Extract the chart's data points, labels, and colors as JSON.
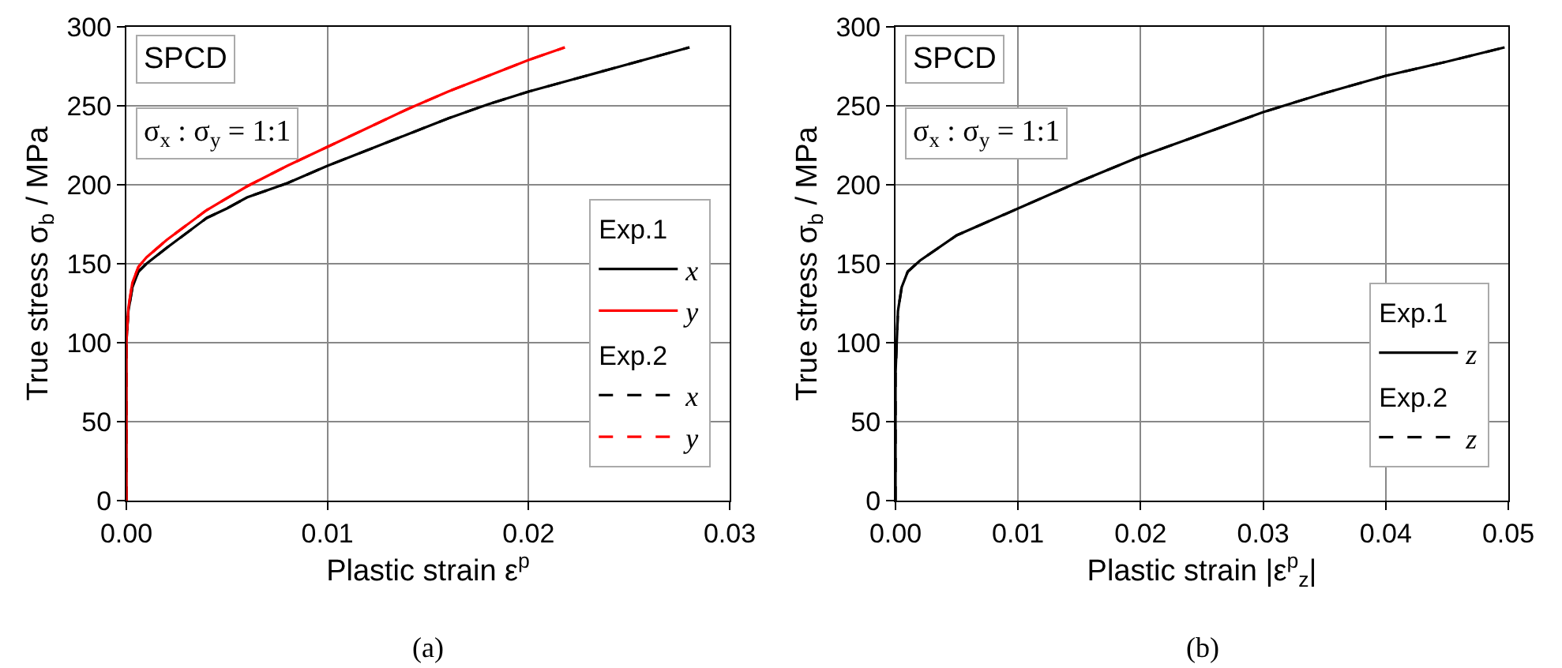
{
  "chart_data": [
    {
      "type": "line",
      "title": "(a)",
      "xlabel": "Plastic strain ε$^{p}$",
      "ylabel": "True stress σ$_{b}$ / MPa",
      "annotations": [
        "SPCD",
        "σ$_{x}$ : σ$_{y}$ = 1:1",
        "Exp.1",
        "Exp.2"
      ],
      "xlim": [
        0,
        0.03
      ],
      "xticks": [
        {
          "value": 0,
          "label": "0.00"
        },
        0.01,
        0.02,
        0.03
      ],
      "ylim": [
        0,
        300
      ],
      "yticks": [
        0,
        50,
        100,
        150,
        200,
        250,
        300
      ],
      "grid": true,
      "legend": "bottom right",
      "marker": "none",
      "series": [
        {
          "name": "x",
          "color": "#000000",
          "line_style": "solid",
          "x": [
            0,
            0,
            0.0001,
            0.0003,
            0.0006,
            0.001,
            0.002,
            0.004,
            0.005,
            0.006,
            0.008,
            0.01,
            0.012,
            0.014,
            0.016,
            0.018,
            0.02,
            0.022,
            0.024,
            0.026,
            0.028
          ],
          "values": [
            0,
            100,
            120,
            135,
            145,
            150,
            160,
            179,
            185,
            192,
            201,
            212,
            222,
            232,
            242,
            251,
            259,
            266,
            273,
            280,
            287
          ]
        },
        {
          "name": "y",
          "color": "#ff0000",
          "line_style": "solid",
          "x": [
            0,
            0,
            0.0001,
            0.0003,
            0.0006,
            0.001,
            0.002,
            0.004,
            0.006,
            0.008,
            0.01,
            0.012,
            0.014,
            0.016,
            0.018,
            0.02,
            0.0218
          ],
          "values": [
            0,
            100,
            122,
            138,
            148,
            154,
            165,
            184,
            199,
            212,
            224,
            236,
            248,
            259,
            269,
            279,
            287
          ]
        },
        {
          "name": "x",
          "color": "#000000",
          "line_style": "dashed",
          "x": [
            0,
            0,
            0.0001,
            0.0003,
            0.0006,
            0.001,
            0.002,
            0.004,
            0.005,
            0.006,
            0.008,
            0.01,
            0.012,
            0.014,
            0.016,
            0.018,
            0.02,
            0.022,
            0.024,
            0.026,
            0.028
          ],
          "values": [
            0,
            100,
            120,
            135,
            145,
            150,
            160,
            179,
            185,
            192,
            201,
            212,
            222,
            232,
            242,
            251,
            259,
            266,
            273,
            280,
            287
          ]
        },
        {
          "name": "y",
          "color": "#ff0000",
          "line_style": "dashed",
          "x": [
            0,
            0,
            0.0001,
            0.0003,
            0.0006,
            0.001,
            0.002,
            0.004,
            0.006,
            0.008,
            0.01,
            0.012,
            0.014,
            0.016,
            0.018,
            0.02,
            0.0218
          ],
          "values": [
            0,
            100,
            122,
            138,
            148,
            154,
            165,
            184,
            199,
            212,
            224,
            236,
            248,
            259,
            269,
            279,
            287
          ]
        }
      ]
    },
    {
      "type": "line",
      "title": "(b)",
      "xlabel": "Plastic strain |ε$^{p}$$_{z}$|",
      "ylabel": "True stress σ$_{b}$ / MPa",
      "annotations": [
        "SPCD",
        "σ$_{x}$ : σ$_{y}$ = 1:1",
        "Exp.1",
        "Exp.2"
      ],
      "xlim": [
        0,
        0.05
      ],
      "xticks": [
        {
          "value": 0,
          "label": "0.00"
        },
        0.01,
        0.02,
        0.03,
        0.04,
        0.05
      ],
      "ylim": [
        0,
        300
      ],
      "yticks": [
        0,
        50,
        100,
        150,
        200,
        250,
        300
      ],
      "grid": true,
      "legend": "bottom right",
      "marker": "none",
      "series": [
        {
          "name": "z",
          "color": "#000000",
          "line_style": "solid",
          "x": [
            0,
            0,
            0.0002,
            0.0005,
            0.001,
            0.002,
            0.005,
            0.01,
            0.015,
            0.02,
            0.025,
            0.03,
            0.035,
            0.04,
            0.045,
            0.0497
          ],
          "values": [
            0,
            80,
            120,
            135,
            145,
            152,
            168,
            185,
            202,
            218,
            232,
            246,
            258,
            269,
            278,
            287
          ]
        },
        {
          "name": "z",
          "color": "#000000",
          "line_style": "dashed",
          "x": [
            0,
            0,
            0.0002,
            0.0005,
            0.001,
            0.002,
            0.005,
            0.01,
            0.015,
            0.02,
            0.025,
            0.03,
            0.035,
            0.04,
            0.045,
            0.0497
          ],
          "values": [
            0,
            80,
            120,
            135,
            145,
            152,
            168,
            185,
            202,
            218,
            232,
            246,
            258,
            269,
            278,
            287
          ]
        }
      ]
    }
  ]
}
